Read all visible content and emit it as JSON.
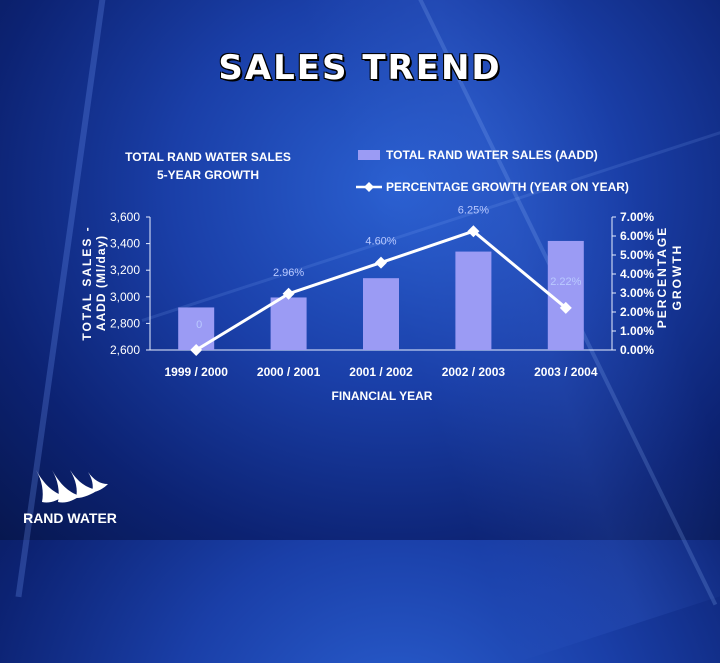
{
  "slide": {
    "title": "SALES TREND"
  },
  "logo": {
    "text": "RAND WATER"
  },
  "colors": {
    "bar": "#9b9bf4",
    "line": "#ffffff",
    "background": "#1a3fa8"
  },
  "chart_data": {
    "type": "bar+line",
    "title_lines": [
      "TOTAL RAND WATER SALES",
      "5-YEAR GROWTH"
    ],
    "categories": [
      "1999 / 2000",
      "2000 / 2001",
      "2001 / 2002",
      "2002 / 2003",
      "2003 / 2004"
    ],
    "series": [
      {
        "name": "TOTAL RAND WATER SALES  (AADD)",
        "type": "bar",
        "axis": "left",
        "values": [
          2920,
          2995,
          3140,
          3340,
          3420
        ]
      },
      {
        "name": "PERCENTAGE GROWTH (YEAR ON YEAR)",
        "type": "line",
        "axis": "right",
        "values": [
          0,
          2.96,
          4.6,
          6.25,
          2.22
        ],
        "labels": [
          "0",
          "2.96%",
          "4.60%",
          "6.25%",
          "2.22%"
        ]
      }
    ],
    "xlabel": "FINANCIAL YEAR",
    "ylabel_left_lines": [
      "TOTAL SALES -",
      "AADD (Ml/day)"
    ],
    "ylabel_right_lines": [
      "PERCENTAGE",
      "GROWTH"
    ],
    "ylim_left": [
      2600,
      3600
    ],
    "left_ticks": [
      "3,600",
      "3,400",
      "3,200",
      "3,000",
      "2,800",
      "2,600"
    ],
    "ylim_right": [
      0,
      7
    ],
    "right_ticks": [
      "7.00%",
      "6.00%",
      "5.00%",
      "4.00%",
      "3.00%",
      "2.00%",
      "1.00%",
      "0.00%"
    ],
    "legend_position": "top-right",
    "grid": false
  }
}
